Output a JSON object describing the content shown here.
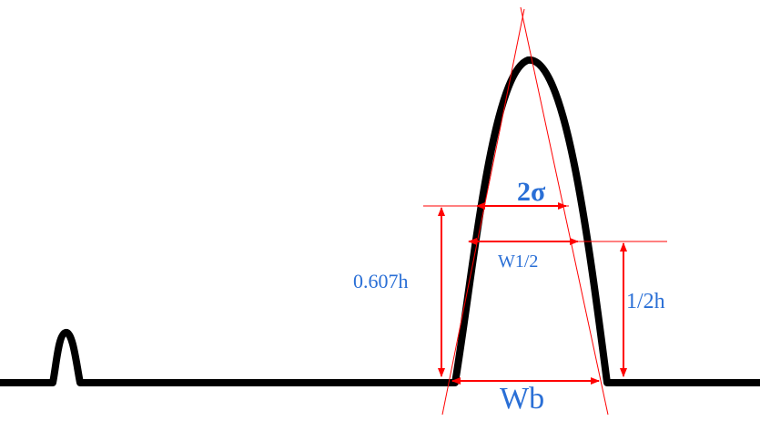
{
  "labels": {
    "two_sigma": "2σ",
    "half_width": "W1/2",
    "height_0607": "0.607h",
    "half_height": "1/2h",
    "base_width": "Wb"
  },
  "colors": {
    "curve": "#000000",
    "annotation": "#ff0000",
    "label_text": "#2a6fd6"
  }
}
